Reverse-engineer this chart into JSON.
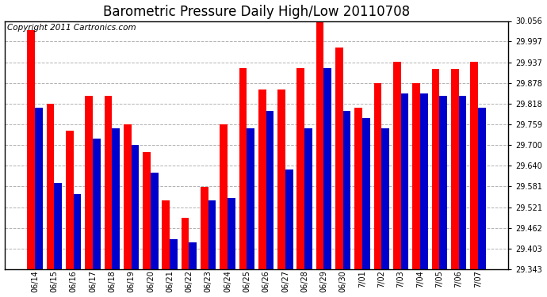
{
  "title": "Barometric Pressure Daily High/Low 20110708",
  "copyright": "Copyright 2011 Cartronics.com",
  "dates": [
    "06/14",
    "06/15",
    "06/16",
    "06/17",
    "06/18",
    "06/19",
    "06/20",
    "06/21",
    "06/22",
    "06/23",
    "06/24",
    "06/25",
    "06/26",
    "06/27",
    "06/28",
    "06/29",
    "06/30",
    "7/01",
    "7/02",
    "7/03",
    "7/04",
    "7/05",
    "7/06",
    "7/07"
  ],
  "highs": [
    30.03,
    29.818,
    29.74,
    29.84,
    29.84,
    29.76,
    29.68,
    29.54,
    29.49,
    29.58,
    29.76,
    29.92,
    29.86,
    29.86,
    29.92,
    30.056,
    29.98,
    29.808,
    29.878,
    29.94,
    29.878,
    29.918,
    29.918,
    29.94
  ],
  "lows": [
    29.808,
    29.59,
    29.56,
    29.718,
    29.748,
    29.7,
    29.62,
    29.43,
    29.42,
    29.54,
    29.548,
    29.748,
    29.798,
    29.63,
    29.748,
    29.92,
    29.798,
    29.778,
    29.748,
    29.848,
    29.848,
    29.84,
    29.84,
    29.808
  ],
  "high_color": "#ff0000",
  "low_color": "#0000cc",
  "bg_color": "#ffffff",
  "grid_color": "#aaaaaa",
  "ymin": 29.343,
  "ymax": 30.056,
  "yticks": [
    29.343,
    29.403,
    29.462,
    29.521,
    29.581,
    29.64,
    29.7,
    29.759,
    29.818,
    29.878,
    29.937,
    29.997,
    30.056
  ],
  "title_fontsize": 12,
  "copyright_fontsize": 7.5
}
